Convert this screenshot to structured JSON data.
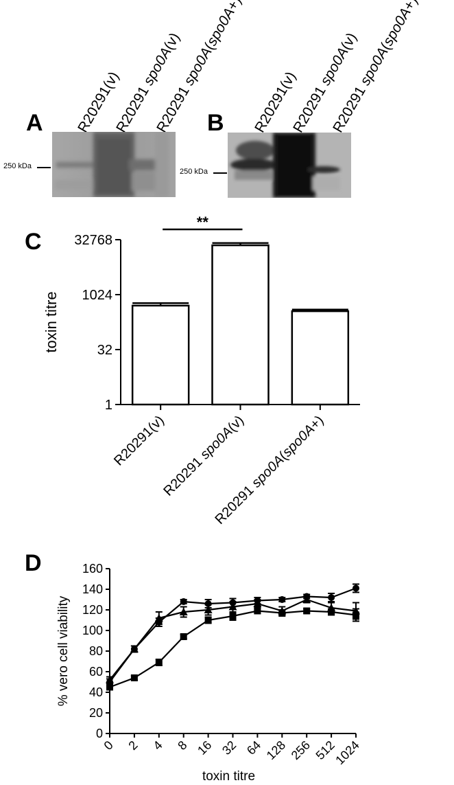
{
  "panels": {
    "a": {
      "letter": "A",
      "lanes": [
        {
          "parts": [
            {
              "text": "R20291(v)",
              "italic": false
            }
          ]
        },
        {
          "parts": [
            {
              "text": "R20291 ",
              "italic": false
            },
            {
              "text": "spo0A",
              "italic": true
            },
            {
              "text": "(v)",
              "italic": false
            }
          ]
        },
        {
          "parts": [
            {
              "text": "R20291 ",
              "italic": false
            },
            {
              "text": "spo0A",
              "italic": true
            },
            {
              "text": "(",
              "italic": false
            },
            {
              "text": "spo0A",
              "italic": true
            },
            {
              "text": "+)",
              "italic": false
            }
          ]
        }
      ],
      "marker": "250 kDa"
    },
    "b": {
      "letter": "B",
      "lanes": [
        {
          "parts": [
            {
              "text": "R20291(v)",
              "italic": false
            }
          ]
        },
        {
          "parts": [
            {
              "text": "R20291 ",
              "italic": false
            },
            {
              "text": "spo0A",
              "italic": true
            },
            {
              "text": "(v)",
              "italic": false
            }
          ]
        },
        {
          "parts": [
            {
              "text": "R20291 ",
              "italic": false
            },
            {
              "text": "spo0A",
              "italic": true
            },
            {
              "text": "(",
              "italic": false
            },
            {
              "text": "spo0A",
              "italic": true
            },
            {
              "text": "+)",
              "italic": false
            }
          ]
        }
      ],
      "marker": "250 kDa"
    },
    "c": {
      "letter": "C",
      "significance": "**"
    },
    "d": {
      "letter": "D"
    }
  },
  "chart_data": [
    {
      "panel": "C",
      "type": "bar",
      "ylabel": "toxin titre",
      "xlabel": "",
      "y_scale": "log2",
      "ylim": [
        1,
        32768
      ],
      "yticks": [
        "1",
        "32",
        "1024",
        "32768"
      ],
      "categories": [
        {
          "parts": [
            {
              "text": "R20291(v)",
              "italic": false
            }
          ]
        },
        {
          "parts": [
            {
              "text": "R20291 ",
              "italic": false
            },
            {
              "text": "spo0A",
              "italic": true
            },
            {
              "text": "(v)",
              "italic": false
            }
          ]
        },
        {
          "parts": [
            {
              "text": "R20291 ",
              "italic": false
            },
            {
              "text": "spo0A",
              "italic": true
            },
            {
              "text": "(",
              "italic": false
            },
            {
              "text": "spo0A",
              "italic": true
            },
            {
              "text": "+)",
              "italic": false
            }
          ]
        }
      ],
      "values": [
        512,
        23000,
        360
      ],
      "error_upper": [
        600,
        26500,
        400
      ],
      "bar_fill": "#ffffff",
      "bar_stroke": "#000000"
    },
    {
      "panel": "D",
      "type": "line",
      "ylabel": "% vero cell viability",
      "xlabel": "toxin titre",
      "categories": [
        "0",
        "2",
        "4",
        "8",
        "16",
        "32",
        "64",
        "128",
        "256",
        "512",
        "1024"
      ],
      "ylim": [
        0,
        160
      ],
      "yticks": [
        0,
        20,
        40,
        60,
        80,
        100,
        120,
        140,
        160
      ],
      "series": [
        {
          "marker": "circle",
          "values": [
            50,
            82,
            108,
            128,
            126,
            127,
            129,
            130,
            133,
            132,
            141
          ],
          "errors": [
            3,
            3,
            4,
            2,
            4,
            4,
            3,
            2,
            2,
            4,
            4
          ]
        },
        {
          "marker": "triangle",
          "values": [
            52,
            82,
            112,
            118,
            120,
            123,
            126,
            119,
            130,
            122,
            119
          ],
          "errors": [
            3,
            3,
            6,
            5,
            5,
            5,
            4,
            4,
            3,
            5,
            8
          ]
        },
        {
          "marker": "square",
          "values": [
            45,
            54,
            69,
            94,
            110,
            114,
            119,
            117,
            119,
            118,
            115
          ],
          "errors": [
            2,
            2,
            3,
            2,
            3,
            4,
            2,
            3,
            2,
            3,
            6
          ]
        }
      ]
    }
  ]
}
